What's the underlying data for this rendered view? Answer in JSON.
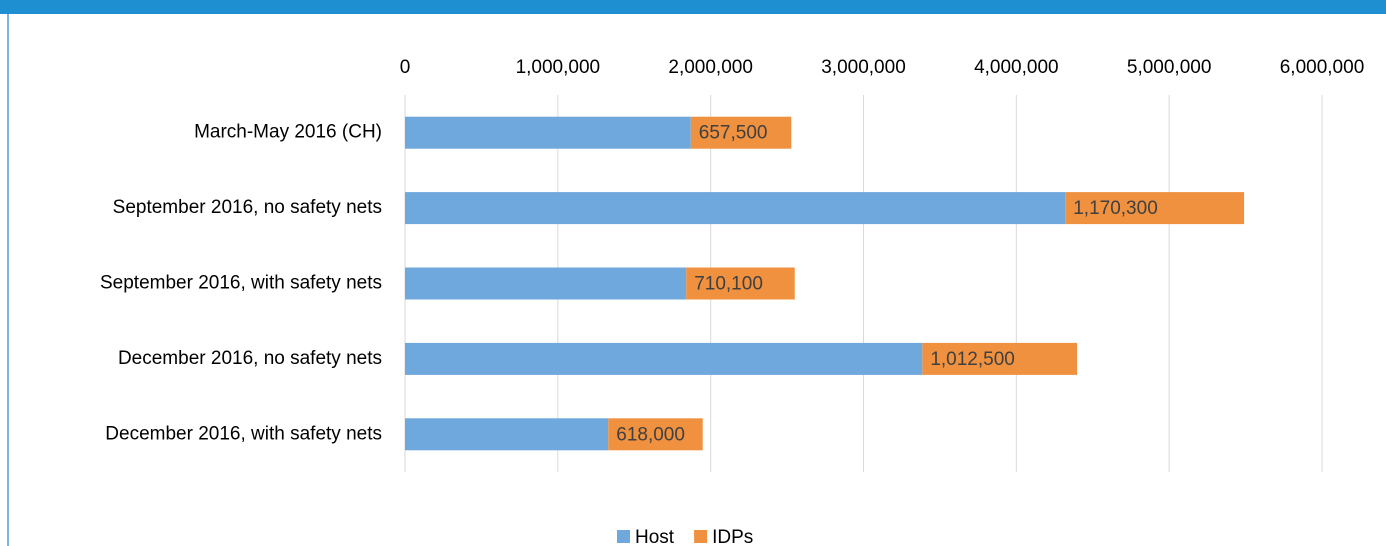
{
  "chart_data": {
    "type": "stacked-bar-horizontal",
    "categories": [
      "March-May 2016 (CH)",
      "September 2016, no safety nets",
      "September 2016, with safety nets",
      "December 2016, no safety nets",
      "December 2016, with safety nets"
    ],
    "series": [
      {
        "name": "Host",
        "color": "#6fa8dc",
        "values": [
          1870000,
          4320000,
          1840000,
          3385000,
          1330000
        ]
      },
      {
        "name": "IDPs",
        "color": "#f0913f",
        "values": [
          657500,
          1170300,
          710100,
          1012500,
          618000
        ],
        "value_labels": [
          "657,500",
          "1,170,300",
          "710,100",
          "1,012,500",
          "618,000"
        ]
      }
    ],
    "xlim": [
      0,
      6000000
    ],
    "xticks": [
      0,
      {
        "value": 1000000,
        "label": "1,000,000"
      },
      {
        "value": 2000000,
        "label": "2,000,000"
      },
      {
        "value": 3000000,
        "label": "3,000,000"
      },
      {
        "value": 4000000,
        "label": "4,000,000"
      },
      {
        "value": 5000000,
        "label": "5,000,000"
      },
      {
        "value": 6000000,
        "label": "6,000,000"
      }
    ],
    "grid": true,
    "legend": "bottom"
  }
}
